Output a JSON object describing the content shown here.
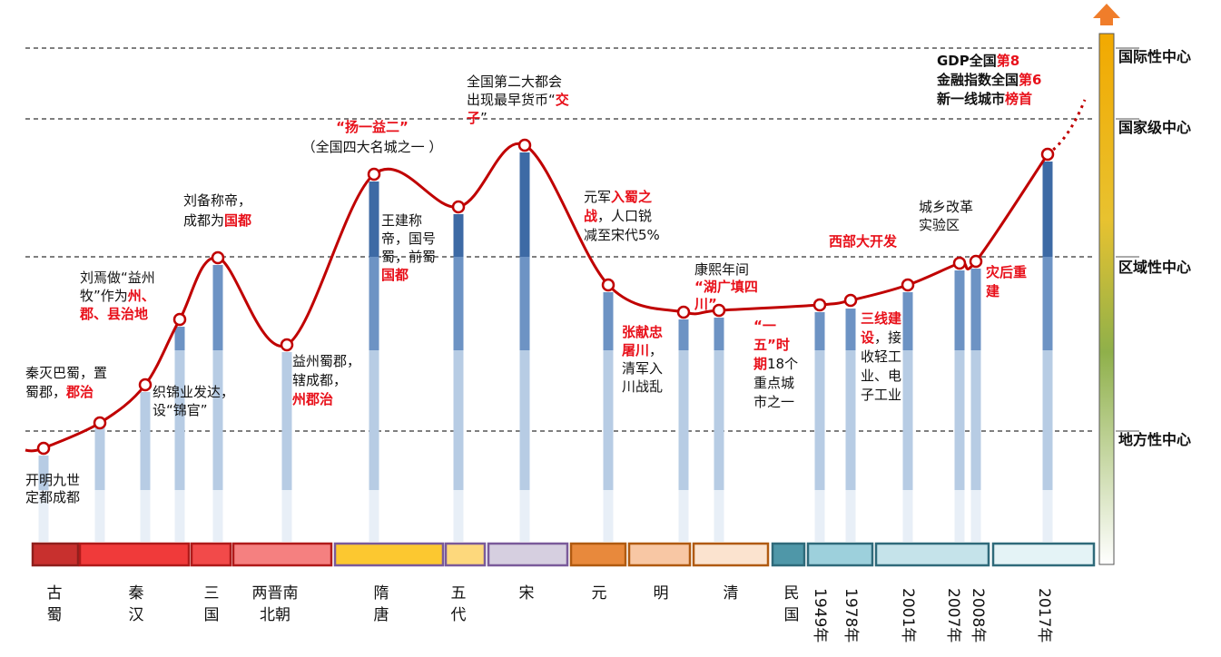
{
  "levels": [
    {
      "label": "国际性中心"
    },
    {
      "label": "国家级中心"
    },
    {
      "label": "区域性中心"
    },
    {
      "label": "地方性中心"
    }
  ],
  "eras": [
    {
      "name": "古蜀",
      "color": "#c8302e"
    },
    {
      "name": "秦汉",
      "color": "#f03a3a"
    },
    {
      "name": "三国",
      "color": "#f24a4a"
    },
    {
      "name": "两晋南北朝",
      "color": "#f58080"
    },
    {
      "name": "隋唐",
      "color": "#fcc830"
    },
    {
      "name": "五代",
      "color": "#fdd87c"
    },
    {
      "name": "宋",
      "color": "#d6cfe0"
    },
    {
      "name": "元",
      "color": "#e8893c"
    },
    {
      "name": "明",
      "color": "#f8c7a4"
    },
    {
      "name": "清",
      "color": "#fbe3cf"
    },
    {
      "name": "民国",
      "color": "#4f97a8"
    },
    {
      "name": "1949年",
      "color": "#9dd0dc"
    },
    {
      "name": "1978年",
      "color": "#9dd0dc"
    },
    {
      "name": "2001年",
      "color": "#c5e3ea"
    },
    {
      "name": "2007年",
      "color": "#c5e3ea"
    },
    {
      "name": "2008年",
      "color": "#c5e3ea"
    },
    {
      "name": "2017年",
      "color": "#e4f3f6"
    }
  ],
  "annotations": [
    {
      "id": "a1",
      "lines": [
        [
          [
            "开明九世",
            0
          ]
        ],
        [
          [
            "定都成都",
            0
          ]
        ]
      ]
    },
    {
      "id": "a2",
      "lines": [
        [
          [
            "秦灭巴蜀，置",
            0
          ]
        ],
        [
          [
            "蜀郡，",
            0
          ],
          [
            "郡治",
            1
          ]
        ]
      ]
    },
    {
      "id": "a3",
      "lines": [
        [
          [
            "织锦业发达，",
            0
          ]
        ],
        [
          [
            "设“锦官”",
            0
          ]
        ]
      ]
    },
    {
      "id": "a4",
      "lines": [
        [
          [
            "刘焉做“益州",
            0
          ]
        ],
        [
          [
            "牧”作为",
            0
          ],
          [
            "州、",
            1
          ]
        ],
        [
          [
            "郡、县治地",
            1
          ]
        ]
      ]
    },
    {
      "id": "a5",
      "lines": [
        [
          [
            "刘备称帝，",
            0
          ]
        ],
        [
          [
            "成都为",
            0
          ],
          [
            "国都",
            1
          ]
        ]
      ]
    },
    {
      "id": "a6",
      "lines": [
        [
          [
            "益州蜀郡，",
            0
          ]
        ],
        [
          [
            "辖成都，",
            0
          ]
        ],
        [
          [
            "州郡治",
            1
          ]
        ]
      ]
    },
    {
      "id": "a7",
      "lines": [
        [
          [
            "“扬一益二”",
            1
          ]
        ],
        [
          [
            "（全国四大名城之一 ）",
            0
          ]
        ]
      ]
    },
    {
      "id": "a8",
      "lines": [
        [
          [
            "王建称",
            0
          ]
        ],
        [
          [
            "帝，国号",
            0
          ]
        ],
        [
          [
            "蜀，前蜀",
            0
          ]
        ],
        [
          [
            "国都",
            1
          ]
        ]
      ]
    },
    {
      "id": "a9",
      "lines": [
        [
          [
            "全国第二大都会",
            0
          ]
        ],
        [
          [
            "出现最早货币“",
            0
          ],
          [
            "交",
            1
          ]
        ],
        [
          [
            "子",
            1
          ],
          [
            "”",
            0
          ]
        ]
      ]
    },
    {
      "id": "a10",
      "lines": [
        [
          [
            "元军",
            0
          ],
          [
            "入蜀之",
            1
          ]
        ],
        [
          [
            "战",
            1
          ],
          [
            "，人口锐",
            0
          ]
        ],
        [
          [
            "减至宋代5%",
            0
          ]
        ]
      ]
    },
    {
      "id": "a11",
      "lines": [
        [
          [
            "张献忠",
            1
          ]
        ],
        [
          [
            "屠川",
            1
          ],
          [
            "，",
            0
          ]
        ],
        [
          [
            "清军入",
            0
          ]
        ],
        [
          [
            "川战乱",
            0
          ]
        ]
      ]
    },
    {
      "id": "a12",
      "lines": [
        [
          [
            "康熙年间",
            0
          ]
        ],
        [
          [
            "“湖广填四",
            1
          ]
        ],
        [
          [
            "川”",
            1
          ]
        ]
      ]
    },
    {
      "id": "a13",
      "lines": [
        [
          [
            "“一",
            1
          ]
        ],
        [
          [
            "五”时",
            1
          ]
        ],
        [
          [
            "期",
            1
          ],
          [
            "18个",
            0
          ]
        ],
        [
          [
            "重点城",
            0
          ]
        ],
        [
          [
            "市之一",
            0
          ]
        ]
      ]
    },
    {
      "id": "a14",
      "lines": [
        [
          [
            "西部大开发",
            1
          ]
        ]
      ]
    },
    {
      "id": "a15",
      "lines": [
        [
          [
            "三线建",
            1
          ]
        ],
        [
          [
            "设",
            1
          ],
          [
            "，接",
            0
          ]
        ],
        [
          [
            "收轻工",
            0
          ]
        ],
        [
          [
            "业、电",
            0
          ]
        ],
        [
          [
            "子工业",
            0
          ]
        ]
      ]
    },
    {
      "id": "a16",
      "lines": [
        [
          [
            "城乡改革",
            0
          ]
        ],
        [
          [
            "实验区",
            0
          ]
        ]
      ]
    },
    {
      "id": "a17",
      "lines": [
        [
          [
            "灾后重",
            1
          ]
        ],
        [
          [
            "建",
            1
          ]
        ]
      ]
    },
    {
      "id": "a18",
      "lines": [
        [
          [
            "GDP全国",
            2
          ],
          [
            "第8",
            1
          ]
        ],
        [
          [
            "金融指数全国",
            2
          ],
          [
            "第6",
            1
          ]
        ],
        [
          [
            "新一线城市",
            2
          ],
          [
            "榜首",
            1
          ]
        ]
      ]
    }
  ],
  "palette": {
    "curve": "#c00000",
    "bar_shades": [
      "#e8eff7",
      "#b7cce4",
      "#6d93c4",
      "#3d6aa5",
      "#223b5e"
    ],
    "scale_top": "#f0a000",
    "scale_bottom": "#ffffff",
    "arrow": "#f07d2a"
  }
}
